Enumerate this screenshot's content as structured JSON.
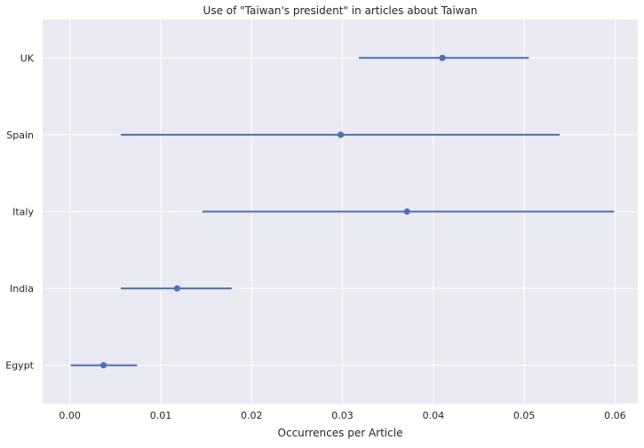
{
  "chart_data": {
    "type": "scatter",
    "title": "Use of \"Taiwan's president\" in articles about Taiwan",
    "xlabel": "Occurrences per Article",
    "ylabel": "",
    "xlim": [
      -0.003,
      0.0625
    ],
    "x_ticks": [
      0.0,
      0.01,
      0.02,
      0.03,
      0.04,
      0.05,
      0.06
    ],
    "x_tick_labels": [
      "0.00",
      "0.01",
      "0.02",
      "0.03",
      "0.04",
      "0.05",
      "0.06"
    ],
    "categories": [
      "UK",
      "Spain",
      "Italy",
      "India",
      "Egypt"
    ],
    "values": [
      0.041,
      0.0298,
      0.0371,
      0.0118,
      0.0037
    ],
    "ci_low": [
      0.0318,
      0.0056,
      0.0146,
      0.0056,
      0.0001
    ],
    "ci_high": [
      0.0505,
      0.0539,
      0.0599,
      0.0178,
      0.0074
    ],
    "grid": true,
    "background_color": "#EAEAF2",
    "grid_color": "#FFFFFF",
    "series_color": "#4C72B0"
  }
}
